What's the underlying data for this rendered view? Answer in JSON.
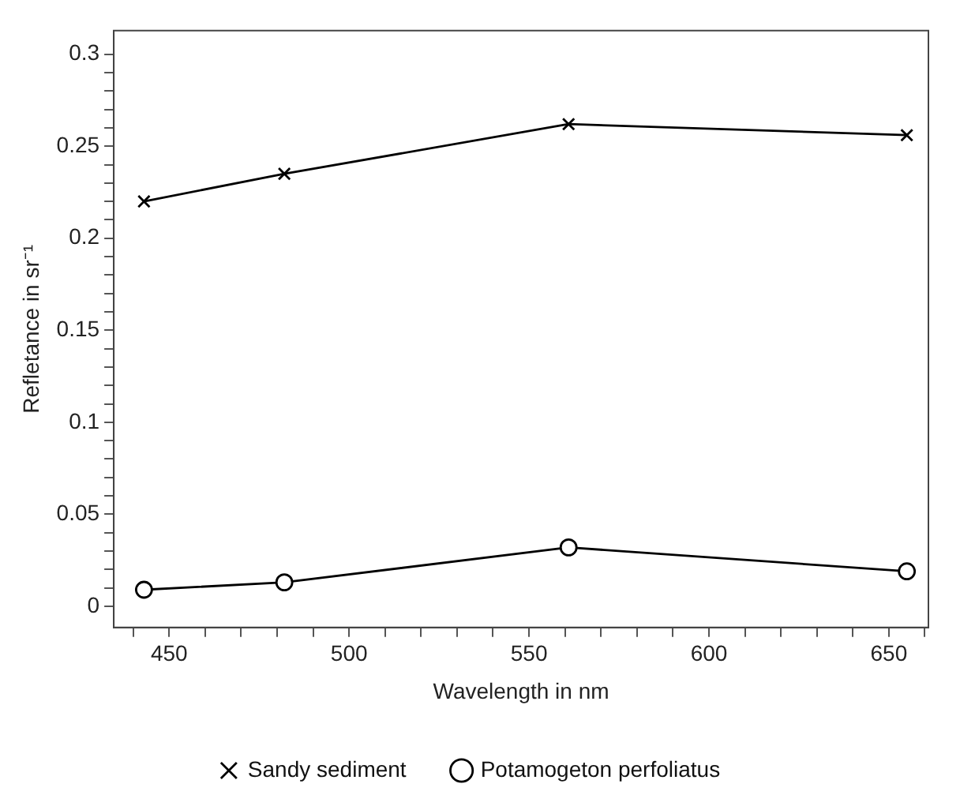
{
  "chart_data": {
    "type": "line",
    "xlabel": "Wavelength in nm",
    "ylabel": "Refletance in sr⁻¹",
    "x": [
      443,
      482,
      561,
      655
    ],
    "series": [
      {
        "name": "Sandy sediment",
        "color": "#000000",
        "marker": "cross",
        "values": [
          0.22,
          0.235,
          0.262,
          0.256
        ]
      },
      {
        "name": "Potamogeton perfoliatus",
        "color": "#000000",
        "marker": "circle",
        "values": [
          0.009,
          0.013,
          0.032,
          0.019
        ]
      }
    ],
    "xlim": [
      434.6,
      661
    ],
    "xticks": [
      {
        "value": 440,
        "label": null
      },
      450,
      {
        "value": 460,
        "label": null
      },
      {
        "value": 470,
        "label": null
      },
      {
        "value": 480,
        "label": null
      },
      {
        "value": 490,
        "label": null
      },
      500,
      {
        "value": 510,
        "label": null
      },
      {
        "value": 520,
        "label": null
      },
      {
        "value": 530,
        "label": null
      },
      {
        "value": 540,
        "label": null
      },
      550,
      {
        "value": 560,
        "label": null
      },
      {
        "value": 570,
        "label": null
      },
      {
        "value": 580,
        "label": null
      },
      {
        "value": 590,
        "label": null
      },
      600,
      {
        "value": 610,
        "label": null
      },
      {
        "value": 620,
        "label": null
      },
      {
        "value": 630,
        "label": null
      },
      {
        "value": 640,
        "label": null
      },
      650,
      {
        "value": 660,
        "label": null
      }
    ],
    "ylim": [
      -0.0115,
      0.3128
    ],
    "yticks": [
      0,
      {
        "value": 0.01,
        "label": null
      },
      {
        "value": 0.02,
        "label": null
      },
      {
        "value": 0.03,
        "label": null
      },
      {
        "value": 0.04,
        "label": null
      },
      0.05,
      {
        "value": 0.06,
        "label": null
      },
      {
        "value": 0.07,
        "label": null
      },
      {
        "value": 0.08,
        "label": null
      },
      {
        "value": 0.09,
        "label": null
      },
      0.1,
      {
        "value": 0.11,
        "label": null
      },
      {
        "value": 0.12,
        "label": null
      },
      {
        "value": 0.13,
        "label": null
      },
      {
        "value": 0.14,
        "label": null
      },
      0.15,
      {
        "value": 0.16,
        "label": null
      },
      {
        "value": 0.17,
        "label": null
      },
      {
        "value": 0.18,
        "label": null
      },
      {
        "value": 0.19,
        "label": null
      },
      0.2,
      {
        "value": 0.21,
        "label": null
      },
      {
        "value": 0.22,
        "label": null
      },
      {
        "value": 0.23,
        "label": null
      },
      {
        "value": 0.24,
        "label": null
      },
      0.25,
      {
        "value": 0.26,
        "label": null
      },
      {
        "value": 0.27,
        "label": null
      },
      {
        "value": 0.28,
        "label": null
      },
      {
        "value": 0.29,
        "label": null
      },
      0.3
    ],
    "grid": false,
    "legend": "bottom",
    "line_style": "solid"
  }
}
